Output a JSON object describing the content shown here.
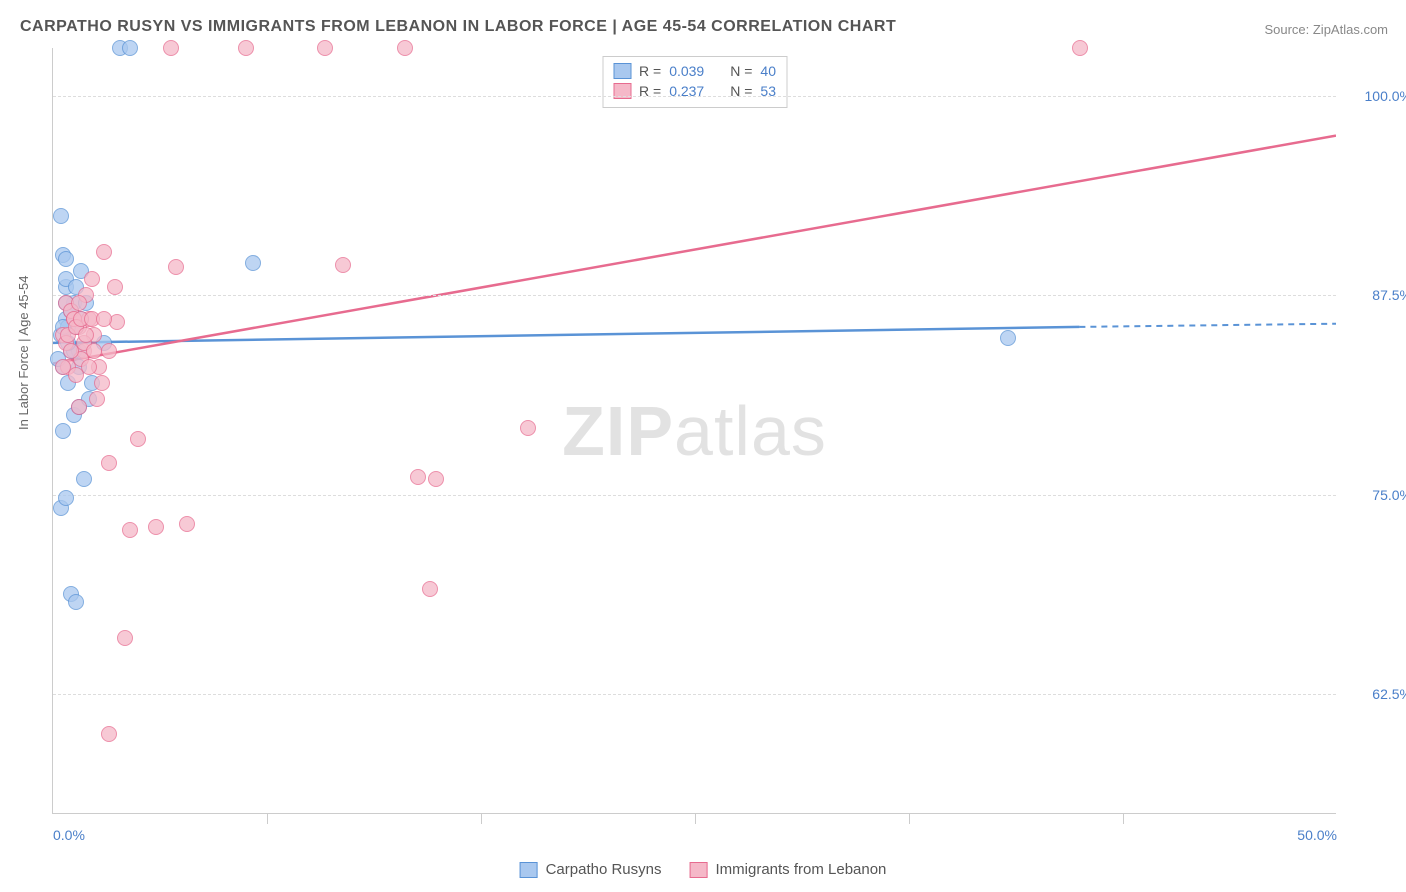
{
  "title": "CARPATHO RUSYN VS IMMIGRANTS FROM LEBANON IN LABOR FORCE | AGE 45-54 CORRELATION CHART",
  "source": "Source: ZipAtlas.com",
  "y_axis_label": "In Labor Force | Age 45-54",
  "watermark_bold": "ZIP",
  "watermark_light": "atlas",
  "chart": {
    "type": "scatter",
    "xlim": [
      0,
      50
    ],
    "ylim": [
      55,
      103
    ],
    "xticks": [
      0,
      25,
      50
    ],
    "xtick_labels": [
      "0.0%",
      "",
      "50.0%"
    ],
    "yticks": [
      62.5,
      75,
      87.5,
      100
    ],
    "ytick_labels": [
      "62.5%",
      "75.0%",
      "87.5%",
      "100.0%"
    ],
    "xtick_minor": [
      8.33,
      16.67,
      25,
      33.33,
      41.67
    ],
    "background_color": "#ffffff",
    "grid_color": "#dddddd",
    "text_color": "#555555",
    "tick_label_color": "#4a7fc9"
  },
  "series": [
    {
      "name": "Carpatho Rusyns",
      "color_fill": "#a9c8ef",
      "color_stroke": "#5a93d6",
      "R": "0.039",
      "N": "40",
      "trend": {
        "x1": 0,
        "y1": 84.5,
        "x2": 40,
        "y2": 85.5,
        "dash_x1": 40,
        "dash_x2": 50,
        "dash_y2": 85.7
      },
      "points": [
        [
          0.3,
          85
        ],
        [
          0.5,
          86
        ],
        [
          0.7,
          84
        ],
        [
          0.4,
          83
        ],
        [
          0.6,
          82
        ],
        [
          0.8,
          87
        ],
        [
          0.5,
          88
        ],
        [
          0.9,
          85.5
        ],
        [
          1.0,
          84
        ],
        [
          0.4,
          90
        ],
        [
          1.1,
          89
        ],
        [
          0.7,
          86.5
        ],
        [
          1.3,
          87
        ],
        [
          0.2,
          83.5
        ],
        [
          0.5,
          89.8
        ],
        [
          0.8,
          80
        ],
        [
          1.0,
          80.5
        ],
        [
          0.4,
          79
        ],
        [
          1.5,
          82
        ],
        [
          0.6,
          85.5
        ],
        [
          2.0,
          84.5
        ],
        [
          0.3,
          74.2
        ],
        [
          0.5,
          74.8
        ],
        [
          2.6,
          103
        ],
        [
          3.0,
          103
        ],
        [
          1.2,
          76
        ],
        [
          1.4,
          81
        ],
        [
          0.5,
          88.5
        ],
        [
          0.3,
          92.5
        ],
        [
          7.8,
          89.5
        ],
        [
          0.7,
          68.8
        ],
        [
          0.9,
          68.3
        ],
        [
          1.1,
          86
        ],
        [
          0.8,
          84
        ],
        [
          1.0,
          83
        ],
        [
          0.6,
          84.5
        ],
        [
          0.4,
          85.5
        ],
        [
          0.5,
          87
        ],
        [
          0.9,
          88
        ],
        [
          37.2,
          84.8
        ]
      ]
    },
    {
      "name": "Immigrants from Lebanon",
      "color_fill": "#f5b8c8",
      "color_stroke": "#e76b8f",
      "R": "0.237",
      "N": "53",
      "trend": {
        "x1": 0,
        "y1": 83.2,
        "x2": 50,
        "y2": 97.5
      },
      "points": [
        [
          0.4,
          85
        ],
        [
          0.8,
          86
        ],
        [
          1.0,
          85.5
        ],
        [
          1.2,
          84
        ],
        [
          0.6,
          83
        ],
        [
          1.4,
          86
        ],
        [
          0.5,
          87
        ],
        [
          1.6,
          85
        ],
        [
          0.9,
          82.5
        ],
        [
          1.1,
          83.5
        ],
        [
          1.8,
          83
        ],
        [
          2.2,
          84
        ],
        [
          0.7,
          86.5
        ],
        [
          1.3,
          87.5
        ],
        [
          1.5,
          88.5
        ],
        [
          2.0,
          90.2
        ],
        [
          2.4,
          88
        ],
        [
          4.8,
          89.3
        ],
        [
          4.6,
          103
        ],
        [
          7.5,
          103
        ],
        [
          10.6,
          103
        ],
        [
          13.7,
          103
        ],
        [
          40.0,
          103
        ],
        [
          1.0,
          80.5
        ],
        [
          2.2,
          77.0
        ],
        [
          3.0,
          72.8
        ],
        [
          4.0,
          73.0
        ],
        [
          5.2,
          73.2
        ],
        [
          2.8,
          66.0
        ],
        [
          2.2,
          60.0
        ],
        [
          3.3,
          78.5
        ],
        [
          14.2,
          76.1
        ],
        [
          14.7,
          69.1
        ],
        [
          11.3,
          89.4
        ],
        [
          18.5,
          79.2
        ],
        [
          14.9,
          76.0
        ],
        [
          0.5,
          84.5
        ],
        [
          2.5,
          85.8
        ],
        [
          1.7,
          81
        ],
        [
          1.9,
          82
        ],
        [
          0.6,
          85
        ],
        [
          0.8,
          86
        ],
        [
          1.0,
          87
        ],
        [
          1.2,
          84.5
        ],
        [
          1.4,
          83
        ],
        [
          0.9,
          85.5
        ],
        [
          1.1,
          86
        ],
        [
          0.7,
          84
        ],
        [
          1.3,
          85
        ],
        [
          1.5,
          86
        ],
        [
          0.4,
          83
        ],
        [
          2.0,
          86
        ],
        [
          1.6,
          84
        ]
      ]
    }
  ],
  "top_legend": {
    "R_label": "R =",
    "N_label": "N ="
  },
  "bottom_legend": {
    "items": [
      "Carpatho Rusyns",
      "Immigrants from Lebanon"
    ]
  }
}
